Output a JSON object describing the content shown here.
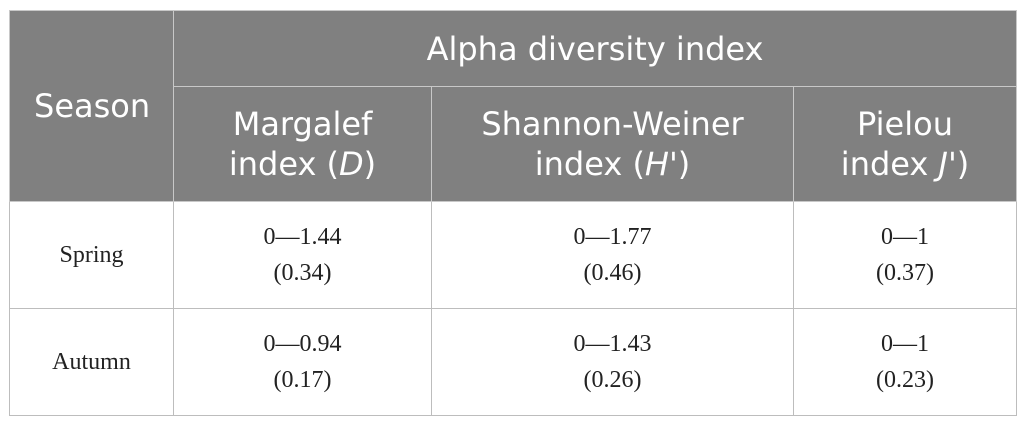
{
  "table": {
    "season_header": "Season",
    "group_header": "Alpha diversity index",
    "columns": [
      {
        "line1": "Margalef",
        "line2_pre": "index (",
        "symbol": "D",
        "line2_post": ")"
      },
      {
        "line1": "Shannon-Weiner",
        "line2_pre": "index (",
        "symbol": "H'",
        "line2_post": ")"
      },
      {
        "line1": "Pielou",
        "line2_pre": "index ",
        "symbol": "J'",
        "line2_post": ")"
      }
    ],
    "rows": [
      {
        "season": "Spring",
        "cells": [
          {
            "range": "0—1.44",
            "mean": "(0.34)"
          },
          {
            "range": "0—1.77",
            "mean": "(0.46)"
          },
          {
            "range": "0—1",
            "mean": "(0.37)"
          }
        ]
      },
      {
        "season": "Autumn",
        "cells": [
          {
            "range": "0—0.94",
            "mean": "(0.17)"
          },
          {
            "range": "0—1.43",
            "mean": "(0.26)"
          },
          {
            "range": "0—1",
            "mean": "(0.23)"
          }
        ]
      }
    ]
  }
}
